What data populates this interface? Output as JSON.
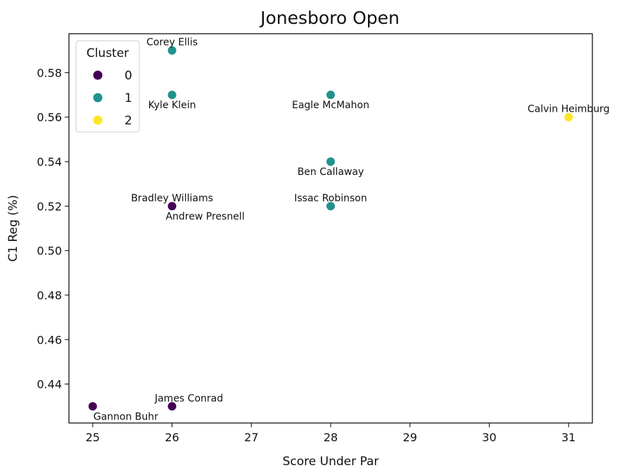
{
  "chart_data": {
    "type": "scatter",
    "title": "Jonesboro Open",
    "xlabel": "Score Under Par",
    "ylabel": "C1 Reg (%)",
    "xlim": [
      24.7,
      31.3
    ],
    "ylim": [
      0.4225,
      0.5975
    ],
    "xticks": [
      25,
      26,
      27,
      28,
      29,
      30,
      31
    ],
    "yticks": [
      0.44,
      0.46,
      0.48,
      0.5,
      0.52,
      0.54,
      0.56,
      0.58
    ],
    "grid": false,
    "legend": {
      "title": "Cluster",
      "placement": "top-left",
      "entries": [
        {
          "label": "0",
          "color": "#440154"
        },
        {
          "label": "1",
          "color": "#21918c"
        },
        {
          "label": "2",
          "color": "#fde725"
        }
      ]
    },
    "points": [
      {
        "label": "Corey Ellis",
        "x": 26,
        "y": 0.59,
        "cluster": 1,
        "label_pos": "above"
      },
      {
        "label": "Kyle Klein",
        "x": 26,
        "y": 0.57,
        "cluster": 1,
        "label_pos": "below"
      },
      {
        "label": "Eagle McMahon",
        "x": 28,
        "y": 0.57,
        "cluster": 1,
        "label_pos": "below"
      },
      {
        "label": "Calvin Heimburg",
        "x": 31,
        "y": 0.56,
        "cluster": 2,
        "label_pos": "above"
      },
      {
        "label": "Ben Callaway",
        "x": 28,
        "y": 0.54,
        "cluster": 1,
        "label_pos": "below"
      },
      {
        "label": "Bradley Williams",
        "x": 26,
        "y": 0.52,
        "cluster": 0,
        "label_pos": "above"
      },
      {
        "label": "Andrew Presnell",
        "x": 26,
        "y": 0.52,
        "cluster": 0,
        "label_pos": "below-right"
      },
      {
        "label": "Issac Robinson",
        "x": 28,
        "y": 0.52,
        "cluster": 1,
        "label_pos": "above"
      },
      {
        "label": "James Conrad",
        "x": 26,
        "y": 0.43,
        "cluster": 0,
        "label_pos": "above-right"
      },
      {
        "label": "Gannon Buhr",
        "x": 25,
        "y": 0.43,
        "cluster": 0,
        "label_pos": "below-right"
      }
    ]
  }
}
